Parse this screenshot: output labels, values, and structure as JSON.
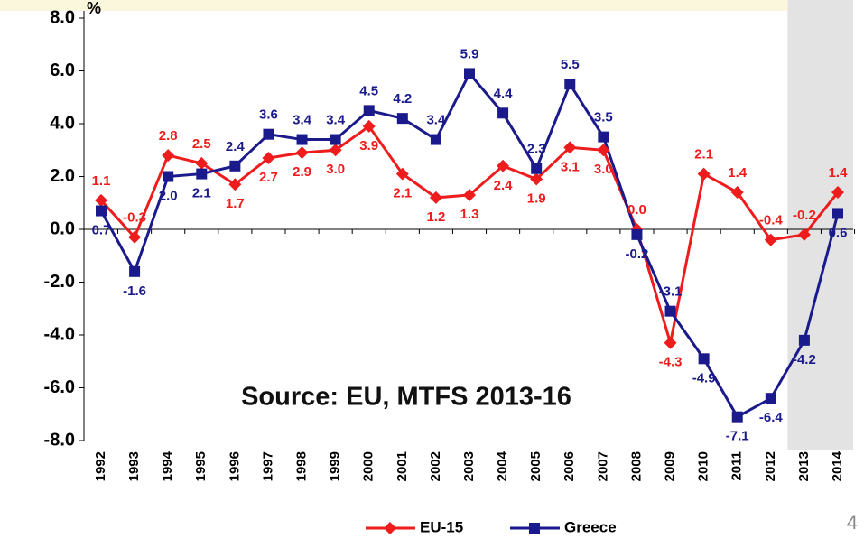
{
  "chart_data": {
    "type": "line",
    "y_label": "%",
    "annotation": "Source: EU, MTFS 2013-16",
    "page_number": "4",
    "shaded_from": "2013",
    "categories": [
      "1992",
      "1993",
      "1994",
      "1995",
      "1996",
      "1997",
      "1998",
      "1999",
      "2000",
      "2001",
      "2002",
      "2003",
      "2004",
      "2005",
      "2006",
      "2007",
      "2008",
      "2009",
      "2010",
      "2011",
      "2012",
      "2013",
      "2014"
    ],
    "series": [
      {
        "name": "EU-15",
        "color": "#ee1c1c",
        "marker": "diamond",
        "values": [
          1.1,
          -0.3,
          2.8,
          2.5,
          1.7,
          2.7,
          2.9,
          3.0,
          3.9,
          2.1,
          1.2,
          1.3,
          2.4,
          1.9,
          3.1,
          3.0,
          0.0,
          -4.3,
          2.1,
          1.4,
          -0.4,
          -0.2,
          1.4
        ],
        "value_labels": [
          "1.1",
          "-0.3",
          "2.8",
          "2.5",
          "1.7",
          "2.7",
          "2.9",
          "3.0",
          "3.9",
          "2.1",
          "1.2",
          "1.3",
          "2.4",
          "1.9",
          "3.1",
          "3.0",
          "0.0",
          "-4.3",
          "2.1",
          "1.4",
          "-0.4",
          "-0.2",
          "1.4"
        ]
      },
      {
        "name": "Greece",
        "color": "#1a1a8c",
        "marker": "square",
        "values": [
          0.7,
          -1.6,
          2.0,
          2.1,
          2.4,
          3.6,
          3.4,
          3.4,
          4.5,
          4.2,
          3.4,
          5.9,
          4.4,
          2.3,
          5.5,
          3.5,
          -0.2,
          -3.1,
          -4.9,
          -7.1,
          -6.4,
          -4.2,
          0.6
        ],
        "value_labels": [
          "0.7",
          "-1.6",
          "2.0",
          "2.1",
          "2.4",
          "3.6",
          "3.4",
          "3.4",
          "4.5",
          "4.2",
          "3.4",
          "5.9",
          "4.4",
          "2.3",
          "5.5",
          "3.5",
          "-0.2",
          "-3.1",
          "-4.9",
          "-7.1",
          "-6.4",
          "-4.2",
          "0.6"
        ]
      }
    ],
    "ylim": [
      -8,
      8
    ],
    "yticks": [
      {
        "value": -8,
        "label": "-8.0"
      },
      {
        "value": -6,
        "label": "-6.0"
      },
      {
        "value": -4,
        "label": "-4.0"
      },
      {
        "value": -2,
        "label": "-2.0"
      },
      {
        "value": 0,
        "label": "0.0"
      },
      {
        "value": 2,
        "label": "2.0"
      },
      {
        "value": 4,
        "label": "4.0"
      },
      {
        "value": 6,
        "label": "6.0"
      },
      {
        "value": 8,
        "label": "8.0"
      }
    ],
    "grid": false
  }
}
